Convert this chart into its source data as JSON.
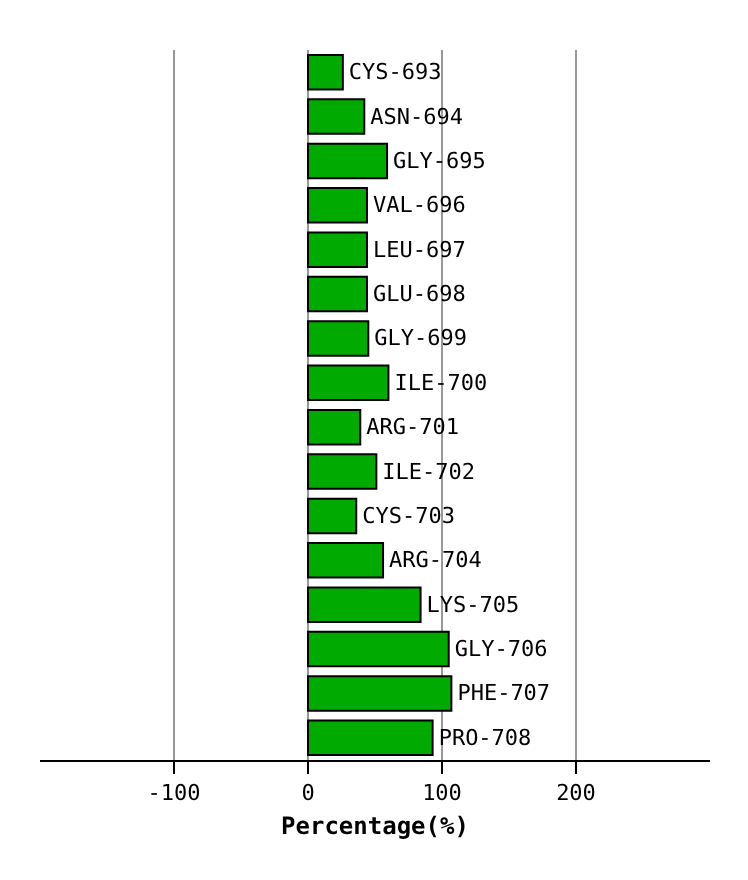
{
  "chart_data": {
    "type": "bar",
    "orientation": "horizontal",
    "xlabel": "Percentage(%)",
    "categories": [
      "CYS-693",
      "ASN-694",
      "GLY-695",
      "VAL-696",
      "LEU-697",
      "GLU-698",
      "GLY-699",
      "ILE-700",
      "ARG-701",
      "ILE-702",
      "CYS-703",
      "ARG-704",
      "LYS-705",
      "GLY-706",
      "PHE-707",
      "PRO-708"
    ],
    "values": [
      26,
      42,
      59,
      44,
      44,
      44,
      45,
      60,
      39,
      51,
      36,
      56,
      84,
      105,
      107,
      93
    ],
    "color": "#00aa00",
    "xlim": [
      -200,
      300
    ],
    "xticks": [
      -100,
      0,
      100,
      200
    ],
    "grid": "x"
  }
}
